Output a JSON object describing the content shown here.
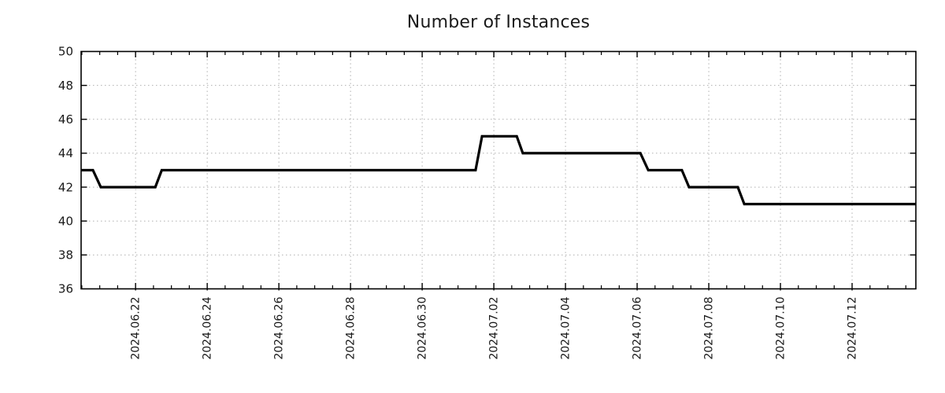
{
  "colors": {
    "background": "#ffffff",
    "line": "#000000",
    "border": "#000000",
    "tick": "#000000",
    "grid": "#b0b0b0",
    "text": "#1a1a1a"
  },
  "chart_data": {
    "type": "line",
    "subtype": "step-with-ramps",
    "title": "Number of Instances",
    "xlabel": "",
    "ylabel": "",
    "legend": "none",
    "grid": "dotted",
    "ylim": [
      36,
      50
    ],
    "y_ticks": [
      36,
      38,
      40,
      42,
      44,
      46,
      48,
      50
    ],
    "x_axis_note": "offsets are days relative to 2024-06-22 00:00",
    "x_range": [
      -1.52,
      21.78
    ],
    "x_minor_step": 0.5,
    "x_ticks": [
      {
        "label": "2024.06.22",
        "offset": 0
      },
      {
        "label": "2024.06.24",
        "offset": 2
      },
      {
        "label": "2024.06.26",
        "offset": 4
      },
      {
        "label": "2024.06.28",
        "offset": 6
      },
      {
        "label": "2024.06.30",
        "offset": 8
      },
      {
        "label": "2024.07.02",
        "offset": 10
      },
      {
        "label": "2024.07.04",
        "offset": 12
      },
      {
        "label": "2024.07.06",
        "offset": 14
      },
      {
        "label": "2024.07.08",
        "offset": 16
      },
      {
        "label": "2024.07.10",
        "offset": 18
      },
      {
        "label": "2024.07.12",
        "offset": 20
      }
    ],
    "series": [
      {
        "name": "instances",
        "color": "#000000",
        "stroke_width": 3.2,
        "points": [
          [
            -1.52,
            43
          ],
          [
            -1.19,
            43
          ],
          [
            -0.97,
            42
          ],
          [
            0.55,
            42
          ],
          [
            0.73,
            43
          ],
          [
            9.49,
            43
          ],
          [
            9.67,
            45
          ],
          [
            10.64,
            45
          ],
          [
            10.81,
            44
          ],
          [
            14.09,
            44
          ],
          [
            14.31,
            43
          ],
          [
            15.25,
            43
          ],
          [
            15.45,
            42
          ],
          [
            16.81,
            42
          ],
          [
            16.99,
            41
          ],
          [
            21.78,
            41
          ]
        ]
      }
    ],
    "step_values_readable": [
      {
        "value": 43,
        "from": "start (~2024-06-20 12:00)"
      },
      {
        "value": 42,
        "from": "~2024-06-21 00:00"
      },
      {
        "value": 43,
        "from": "~2024-06-22 17:00"
      },
      {
        "value": 45,
        "from": "~2024-07-01 16:00"
      },
      {
        "value": 44,
        "from": "~2024-07-02 19:00"
      },
      {
        "value": 43,
        "from": "~2024-07-06 07:00"
      },
      {
        "value": 42,
        "from": "~2024-07-07 11:00"
      },
      {
        "value": 41,
        "from": "~2024-07-09 00:00",
        "until": "end (~2024-07-13 19:00)"
      }
    ]
  }
}
